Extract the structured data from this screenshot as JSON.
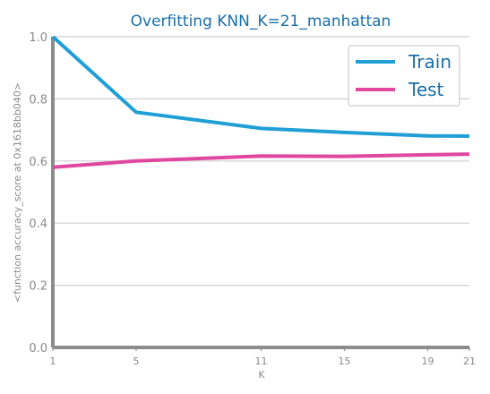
{
  "chart_data": {
    "type": "line",
    "title": "Overfitting KNN_K=21_manhattan",
    "xlabel": "K",
    "ylabel": "<function accuracy_score at 0x1618bb040>",
    "x": [
      1,
      5,
      11,
      15,
      19,
      21
    ],
    "xticks": [
      "1",
      "5",
      "11",
      "15",
      "19",
      "21"
    ],
    "yticks": [
      "0.0",
      "0.2",
      "0.4",
      "0.6",
      "0.8",
      "1.0"
    ],
    "xlim": [
      1,
      21
    ],
    "ylim": [
      0,
      1
    ],
    "grid": "horizontal",
    "legend_position": "top-right",
    "series": [
      {
        "name": "Train",
        "color": "#1f9fd6",
        "values": [
          1.0,
          0.757,
          0.705,
          0.692,
          0.681,
          0.68
        ]
      },
      {
        "name": "Test",
        "color": "#e0479e",
        "values": [
          0.58,
          0.6,
          0.616,
          0.615,
          0.62,
          0.622
        ]
      }
    ]
  }
}
